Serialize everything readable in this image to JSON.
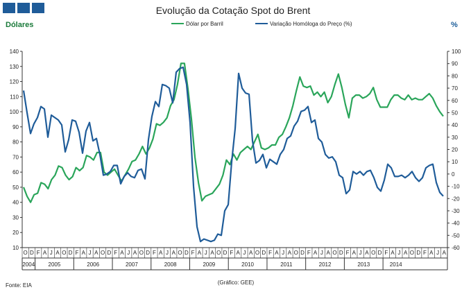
{
  "chart_data": {
    "type": "line",
    "title": "Evolução da Cotação Spot do Brent",
    "ylabel": "Dólares",
    "y2label": "%",
    "ylim": [
      10,
      140
    ],
    "y2lim": [
      -60,
      100
    ],
    "source": "Fonte: EIA",
    "credit": "(Gráfico: GEE)",
    "grid": false,
    "legend_position": "top-center",
    "y_ticks": [
      10,
      20,
      30,
      40,
      50,
      60,
      70,
      80,
      90,
      100,
      110,
      120,
      130,
      140
    ],
    "y2_ticks": [
      -60,
      -50,
      -40,
      -30,
      -20,
      -10,
      0,
      10,
      20,
      30,
      40,
      50,
      60,
      70,
      80,
      90,
      100
    ],
    "month_labels": [
      "O",
      "D",
      "F",
      "A",
      "J",
      "A",
      "O",
      "D",
      "F",
      "A",
      "J",
      "A",
      "O",
      "D",
      "F",
      "A",
      "J",
      "A",
      "O",
      "D",
      "F",
      "A",
      "J",
      "A",
      "O",
      "D",
      "F",
      "A",
      "J",
      "A",
      "O",
      "D",
      "F",
      "A",
      "J",
      "A",
      "O",
      "D",
      "F",
      "A",
      "J",
      "A",
      "O",
      "D",
      "F",
      "A",
      "J",
      "A",
      "O",
      "D",
      "F",
      "A",
      "J",
      "A",
      "O",
      "D",
      "F",
      "A",
      "J",
      "A",
      "O",
      "D",
      "F",
      "A",
      "J",
      "A"
    ],
    "years": [
      "2004",
      "2005",
      "2006",
      "2007",
      "2008",
      "2009",
      "2010",
      "2011",
      "2012",
      "2013",
      "2014"
    ],
    "colors": {
      "price": "#2aa55a",
      "change": "#1f5c99"
    },
    "series": [
      {
        "name": "Dólar por Barril",
        "axis": "left",
        "values": [
          50,
          44,
          40,
          45,
          46,
          53,
          52,
          49,
          55,
          58,
          64,
          63,
          58,
          55,
          57,
          63,
          61,
          63,
          71,
          70,
          68,
          73,
          73,
          60,
          58,
          60,
          62,
          58,
          54,
          58,
          62,
          67,
          68,
          72,
          77,
          72,
          76,
          82,
          92,
          91,
          93,
          96,
          104,
          108,
          118,
          132,
          132,
          115,
          95,
          70,
          53,
          41,
          44,
          45,
          46,
          49,
          52,
          58,
          68,
          65,
          72,
          68,
          73,
          75,
          77,
          75,
          80,
          85,
          76,
          75,
          76,
          78,
          78,
          83,
          85,
          90,
          96,
          104,
          114,
          123,
          117,
          116,
          117,
          111,
          113,
          110,
          113,
          106,
          110,
          118,
          125,
          116,
          105,
          96,
          109,
          111,
          111,
          109,
          110,
          112,
          116,
          108,
          103,
          103,
          103,
          108,
          111,
          111,
          109,
          108,
          111,
          108,
          109,
          108,
          108,
          110,
          112,
          109,
          104,
          100,
          97
        ]
      },
      {
        "name": "Variação Homóloga do Preço (%)",
        "axis": "right",
        "values": [
          68,
          50,
          33,
          41,
          46,
          55,
          53,
          30,
          48,
          46,
          44,
          40,
          18,
          28,
          44,
          43,
          34,
          17,
          35,
          42,
          27,
          29,
          16,
          -1,
          0,
          2,
          7,
          7,
          -8,
          -2,
          1,
          -2,
          -3,
          3,
          4,
          -4,
          28,
          47,
          59,
          55,
          73,
          72,
          70,
          58,
          83,
          86,
          87,
          73,
          42,
          -10,
          -43,
          -55,
          -53,
          -54,
          -55,
          -54,
          -49,
          -50,
          -30,
          -25,
          10,
          37,
          82,
          70,
          66,
          65,
          27,
          9,
          11,
          16,
          5,
          12,
          10,
          8,
          16,
          20,
          29,
          31,
          39,
          43,
          51,
          52,
          55,
          42,
          44,
          29,
          26,
          16,
          13,
          14,
          10,
          -1,
          -3,
          -16,
          -13,
          2,
          0,
          2,
          -1,
          2,
          3,
          -3,
          -11,
          -14,
          -5,
          8,
          5,
          -2,
          -2,
          -1,
          -3,
          -1,
          2,
          -3,
          -6,
          -3,
          5,
          7,
          8,
          -7,
          -15,
          -18
        ]
      }
    ]
  }
}
